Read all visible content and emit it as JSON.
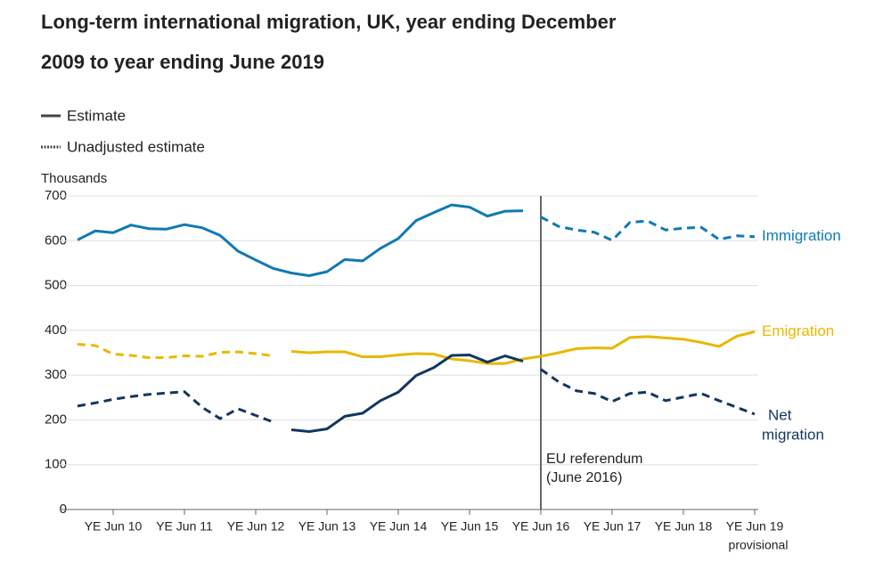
{
  "chart_data": {
    "type": "line",
    "title": [
      "Long-term international migration, UK, year ending December",
      "2009 to year ending June 2019"
    ],
    "legend": {
      "solid": "Estimate",
      "dashed": "Unadjusted estimate"
    },
    "y_label": "Thousands",
    "categories": [
      null,
      null,
      "YE Jun 10",
      null,
      null,
      null,
      "YE Jun 11",
      null,
      null,
      null,
      "YE Jun 12",
      null,
      null,
      null,
      "YE Jun 13",
      null,
      null,
      null,
      "YE Jun 14",
      null,
      null,
      null,
      "YE Jun 15",
      null,
      null,
      null,
      "YE Jun 16",
      null,
      null,
      null,
      "YE Jun 17",
      null,
      null,
      null,
      "YE Jun 18",
      null,
      null,
      null,
      "YE Jun 19"
    ],
    "last_tick_note": "provisional",
    "ylim": [
      0,
      700
    ],
    "yticks": [
      0,
      100,
      200,
      300,
      400,
      500,
      600,
      700
    ],
    "grid": true,
    "reference_line": {
      "index": 26,
      "label": [
        "EU referendum",
        "(June 2016)"
      ]
    },
    "series": [
      {
        "label": [
          "Immigration"
        ],
        "color": "#0f7ab3",
        "values": [
          602,
          622,
          618,
          635,
          627,
          626,
          636,
          629,
          612,
          577,
          557,
          538,
          528,
          522,
          531,
          558,
          555,
          583,
          605,
          645,
          663,
          680,
          675,
          655,
          666,
          667,
          null,
          null,
          null,
          null,
          null,
          null,
          null,
          null,
          null,
          null,
          null,
          null,
          null
        ],
        "unadjusted": [
          null,
          null,
          null,
          null,
          null,
          null,
          null,
          null,
          null,
          null,
          null,
          null,
          null,
          null,
          null,
          null,
          null,
          null,
          null,
          null,
          null,
          null,
          null,
          null,
          null,
          null,
          653,
          632,
          624,
          619,
          601,
          641,
          644,
          624,
          628,
          630,
          603,
          611,
          609
        ]
      },
      {
        "label": [
          "Emigration"
        ],
        "color": "#e8b800",
        "values": [
          null,
          null,
          null,
          null,
          null,
          null,
          null,
          null,
          null,
          null,
          null,
          null,
          353,
          350,
          352,
          352,
          341,
          341,
          345,
          348,
          347,
          336,
          332,
          326,
          326,
          336,
          342,
          350,
          359,
          361,
          360,
          384,
          386,
          383,
          380,
          373,
          364,
          387,
          397
        ],
        "unadjusted": [
          369,
          366,
          347,
          344,
          339,
          339,
          343,
          342,
          351,
          352,
          348,
          343,
          null,
          null,
          null,
          null,
          null,
          null,
          null,
          null,
          null,
          null,
          null,
          null,
          null,
          null,
          null,
          null,
          null,
          null,
          null,
          null,
          null,
          null,
          null,
          null,
          null,
          null,
          null
        ]
      },
      {
        "label": [
          "Net",
          "migration"
        ],
        "color": "#12375e",
        "values": [
          null,
          null,
          null,
          null,
          null,
          null,
          null,
          null,
          null,
          null,
          null,
          null,
          178,
          174,
          180,
          208,
          215,
          243,
          262,
          299,
          317,
          344,
          345,
          329,
          343,
          331,
          null,
          null,
          null,
          null,
          null,
          null,
          null,
          null,
          null,
          null,
          null,
          null,
          null
        ],
        "unadjusted": [
          231,
          238,
          246,
          252,
          257,
          260,
          263,
          228,
          203,
          225,
          210,
          195,
          null,
          null,
          null,
          null,
          null,
          null,
          null,
          null,
          null,
          null,
          null,
          null,
          null,
          null,
          313,
          285,
          265,
          259,
          241,
          259,
          262,
          243,
          251,
          259,
          243,
          228,
          213
        ]
      }
    ]
  }
}
